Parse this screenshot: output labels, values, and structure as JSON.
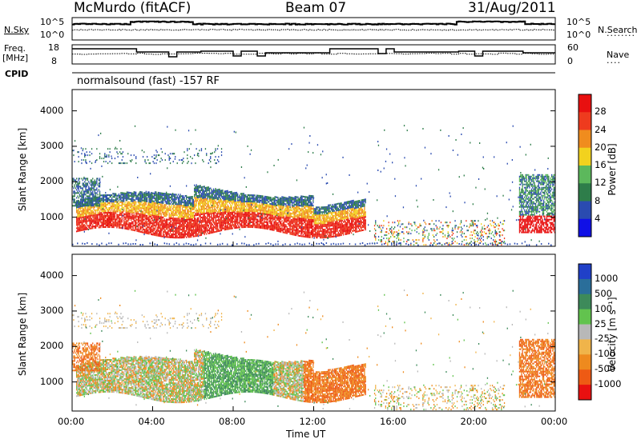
{
  "header": {
    "station": "McMurdo (fitACF)",
    "beam": "Beam 07",
    "date": "31/Aug/2011"
  },
  "panels": {
    "nsky_label": "N.Sky",
    "nsearch_label": "N.Search",
    "nsky_ticks": [
      "10^5",
      "10^0"
    ],
    "nsearch_ticks": [
      "10^5",
      "10^0"
    ],
    "freq_label_1": "Freq.",
    "freq_label_2": "[MHz]",
    "freq_ticks": [
      "18",
      "8"
    ],
    "nave_label": "Nave",
    "nave_ticks": [
      "60",
      "0"
    ],
    "cpid_label": "CPID",
    "cpid_value": "normalsound (fast) -157 RF"
  },
  "colors": {
    "power_scale": [
      "#1010e6",
      "#2a4bb0",
      "#2e7d4a",
      "#5cb85c",
      "#f2d21e",
      "#f08c1e",
      "#ee3b1e",
      "#e81010"
    ],
    "velocity_scale": [
      "#2040c8",
      "#2a6e9a",
      "#3d8a5a",
      "#62c34e",
      "#b8b8b8",
      "#f0b44a",
      "#ee8a1e",
      "#ee5a14",
      "#e81010"
    ]
  },
  "chart_data": [
    {
      "type": "heatmap",
      "name": "Power",
      "xlabel": "",
      "ylabel": "Slant Range [km]",
      "x_ticks": [
        "00:00",
        "04:00",
        "08:00",
        "12:00",
        "16:00",
        "20:00",
        "00:00"
      ],
      "y_ticks": [
        1000,
        2000,
        3000,
        4000
      ],
      "xlim": [
        0,
        24
      ],
      "ylim": [
        180,
        4600
      ],
      "colorbar_label": "Power [dB]",
      "colorbar_ticks": [
        4,
        8,
        12,
        16,
        20,
        24,
        28
      ],
      "cmap_range": [
        0,
        32
      ]
    },
    {
      "type": "heatmap",
      "name": "Velocity",
      "xlabel": "Time UT",
      "ylabel": "Slant Range [km]",
      "x_ticks": [
        "00:00",
        "04:00",
        "08:00",
        "12:00",
        "16:00",
        "20:00",
        "00:00"
      ],
      "y_ticks": [
        1000,
        2000,
        3000,
        4000
      ],
      "xlim": [
        0,
        24
      ],
      "ylim": [
        180,
        4600
      ],
      "colorbar_label": "Velocity [m s⁻¹]",
      "colorbar_ticks": [
        "1000",
        "500",
        "100",
        "25",
        "-25",
        "-100",
        "-500",
        "-1000"
      ]
    }
  ]
}
